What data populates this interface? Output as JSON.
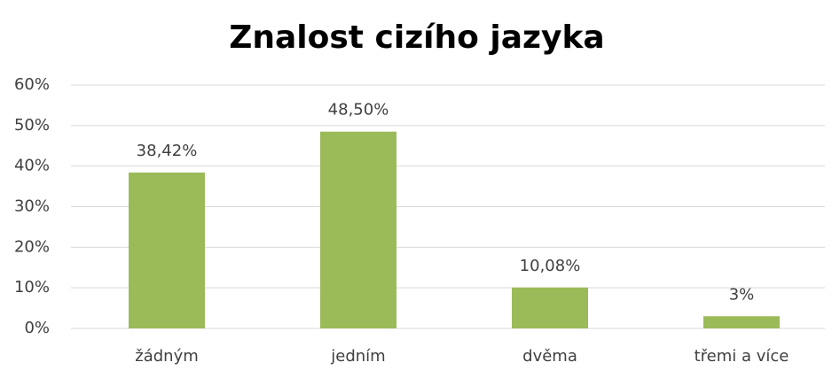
{
  "chart_data": {
    "type": "bar",
    "title": "Znalost cizího jazyka",
    "categories": [
      "žádným",
      "jedním",
      "dvěma",
      "třemi a více"
    ],
    "values": [
      38.42,
      48.5,
      10.08,
      3
    ],
    "value_labels": [
      "38,42%",
      "48,50%",
      "10,08%",
      "3%"
    ],
    "color": "#9bbb59",
    "ylim": [
      0,
      60
    ],
    "yticks": [
      {
        "value": 0,
        "label": "0%"
      },
      {
        "value": 10,
        "label": "10%"
      },
      {
        "value": 20,
        "label": "20%"
      },
      {
        "value": 30,
        "label": "30%"
      },
      {
        "value": 40,
        "label": "40%"
      },
      {
        "value": 50,
        "label": "50%"
      },
      {
        "value": 60,
        "label": "60%"
      }
    ],
    "grid": true
  }
}
